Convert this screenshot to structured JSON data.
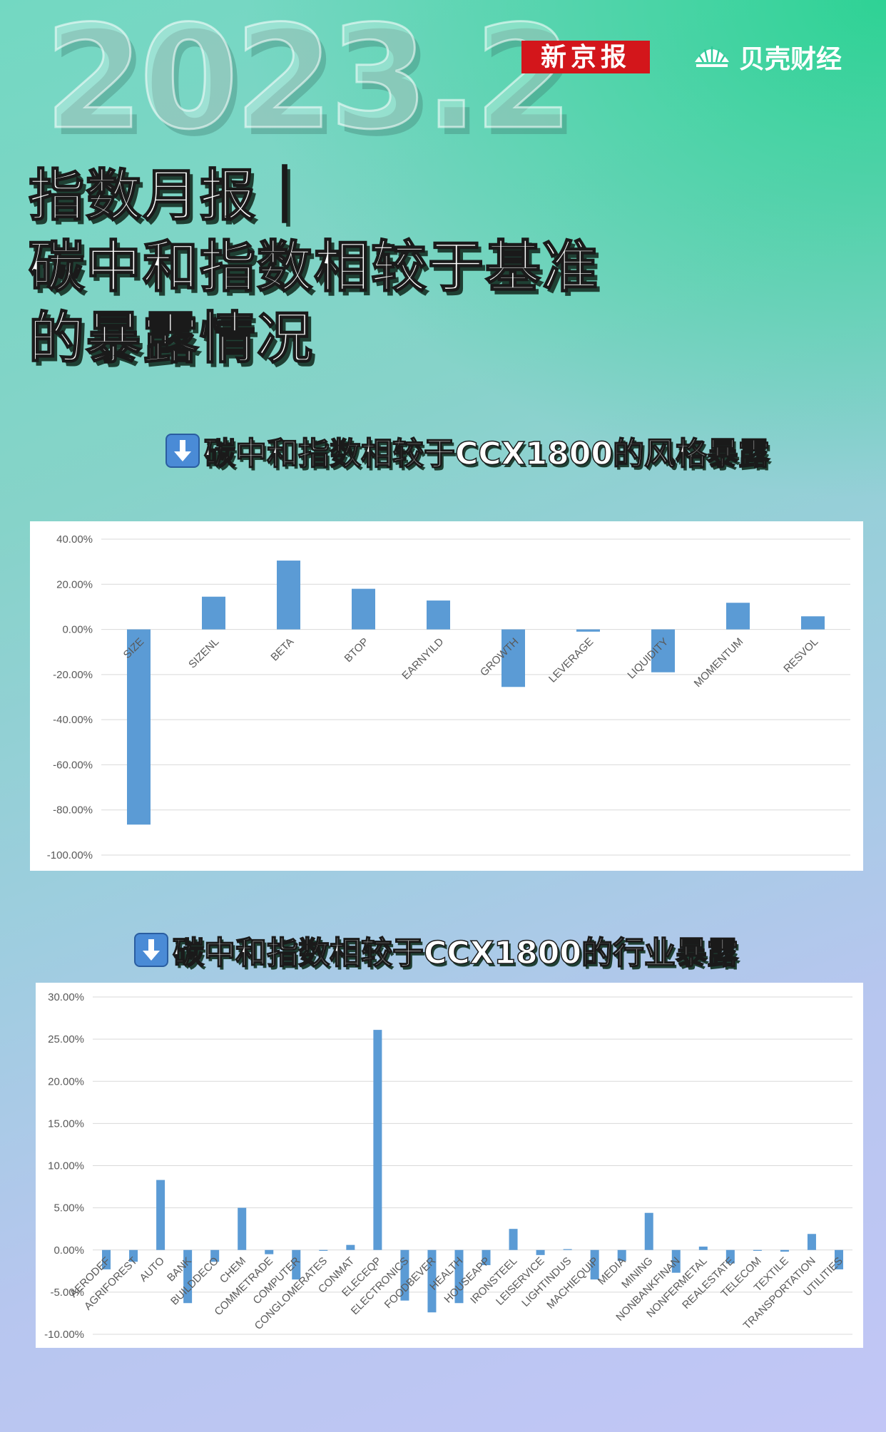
{
  "header": {
    "year_label": "2023.2",
    "brand_left": "新京报",
    "brand_right": "贝壳财经",
    "title_lines": [
      "指数月报｜",
      "碳中和指数相较于基准",
      "的暴露情况"
    ]
  },
  "sections": [
    {
      "title": "碳中和指数相较于CCX1800的风格暴露"
    },
    {
      "title": "碳中和指数相较于CCX1800的行业暴露"
    }
  ],
  "colors": {
    "bar": "#5b9bd5",
    "grid": "#d9d9d9",
    "axis_text": "#595959"
  },
  "chart_data": [
    {
      "type": "bar",
      "title": "",
      "categories": [
        "SIZE",
        "SIZENL",
        "BETA",
        "BTOP",
        "EARNYILD",
        "GROWTH",
        "LEVERAGE",
        "LIQUIDITY",
        "MOMENTUM",
        "RESVOL"
      ],
      "values": [
        -86.5,
        14.5,
        30.5,
        18.0,
        12.8,
        -25.5,
        -1.0,
        -19.0,
        11.8,
        5.8
      ],
      "ylim": [
        -100,
        40
      ],
      "yticks": [
        "40.00%",
        "20.00%",
        "0.00%",
        "-20.00%",
        "-40.00%",
        "-60.00%",
        "-80.00%",
        "-100.00%"
      ],
      "ytick_values": [
        40,
        20,
        0,
        -20,
        -40,
        -60,
        -80,
        -100
      ],
      "grid": true,
      "legend": "none"
    },
    {
      "type": "bar",
      "title": "",
      "categories": [
        "AERODEF",
        "AGRIFOREST",
        "AUTO",
        "BANK",
        "BUILDDECO",
        "CHEM",
        "COMMETRADE",
        "COMPUTER",
        "CONGLOMERATES",
        "CONMAT",
        "ELECEQP",
        "ELECTRONICS",
        "FOODBEVER",
        "HEALTH",
        "HOUSEAPP",
        "IRONSTEEL",
        "LEISERVICE",
        "LIGHTINDUS",
        "MACHIEQUIP",
        "MEDIA",
        "MINING",
        "NONBANKFINAN",
        "NONFERMETAL",
        "REALESTATE",
        "TELECOM",
        "TEXTILE",
        "TRANSPORTATION",
        "UTILITIES"
      ],
      "values": [
        -2.3,
        -1.4,
        8.3,
        -6.3,
        -1.4,
        5.0,
        -0.5,
        -3.5,
        -0.1,
        0.6,
        26.1,
        -6.0,
        -7.4,
        -6.3,
        -1.8,
        2.5,
        -0.6,
        0.1,
        -3.5,
        -1.3,
        4.4,
        -2.7,
        0.4,
        -1.6,
        -0.1,
        -0.2,
        1.9,
        -2.3
      ],
      "ylim": [
        -10,
        30
      ],
      "yticks": [
        "30.00%",
        "25.00%",
        "20.00%",
        "15.00%",
        "10.00%",
        "5.00%",
        "0.00%",
        "-5.00%",
        "-10.00%"
      ],
      "ytick_values": [
        30,
        25,
        20,
        15,
        10,
        5,
        0,
        -5,
        -10
      ],
      "grid": true,
      "legend": "none"
    }
  ]
}
